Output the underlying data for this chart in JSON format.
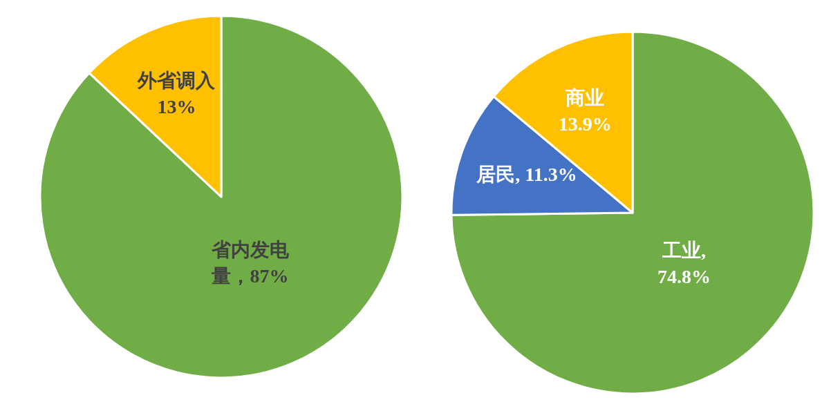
{
  "chart_data": [
    {
      "type": "pie",
      "categories": [
        "省内发电量",
        "外省调入"
      ],
      "values": [
        87,
        13
      ],
      "colors": [
        "#70ad47",
        "#ffc000"
      ],
      "value_labels": [
        "，87%",
        "\n13%"
      ]
    },
    {
      "type": "pie",
      "categories": [
        "工业",
        "居民",
        "商业"
      ],
      "values": [
        74.8,
        11.3,
        13.9
      ],
      "colors": [
        "#70ad47",
        "#4472c4",
        "#ffc000"
      ],
      "value_labels": [
        ",\n74.8%",
        ", 11.3%",
        "\n13.9%"
      ]
    }
  ]
}
